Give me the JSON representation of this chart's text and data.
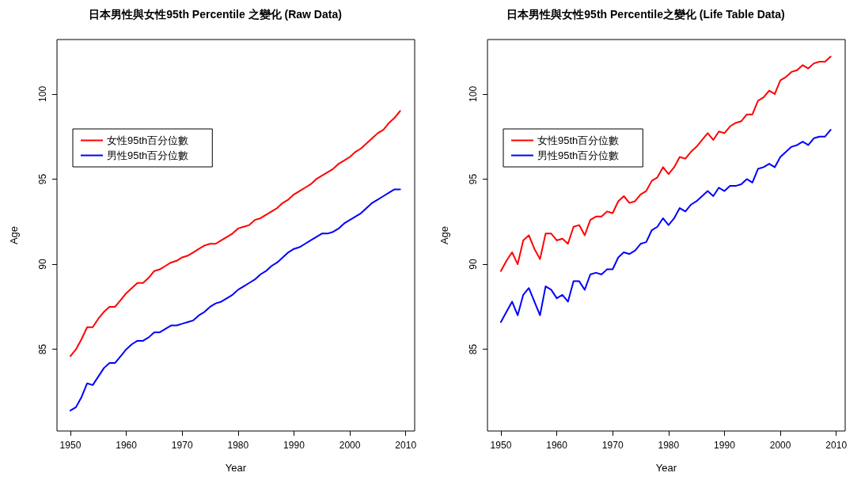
{
  "chart_data": [
    {
      "type": "line",
      "title": "日本男性與女性95th Percentile 之變化 (Raw Data)",
      "xlabel": "Year",
      "ylabel": "Age",
      "x": [
        1950,
        1951,
        1952,
        1953,
        1954,
        1955,
        1956,
        1957,
        1958,
        1959,
        1960,
        1961,
        1962,
        1963,
        1964,
        1965,
        1966,
        1967,
        1968,
        1969,
        1970,
        1971,
        1972,
        1973,
        1974,
        1975,
        1976,
        1977,
        1978,
        1979,
        1980,
        1981,
        1982,
        1983,
        1984,
        1985,
        1986,
        1987,
        1988,
        1989,
        1990,
        1991,
        1992,
        1993,
        1994,
        1995,
        1996,
        1997,
        1998,
        1999,
        2000,
        2001,
        2002,
        2003,
        2004,
        2005,
        2006,
        2007,
        2008,
        2009
      ],
      "series": [
        {
          "name": "女性95th百分位數",
          "color": "#ff0000",
          "values": [
            84.6,
            85.0,
            85.6,
            86.3,
            86.3,
            86.8,
            87.2,
            87.5,
            87.5,
            87.9,
            88.3,
            88.6,
            88.9,
            88.9,
            89.2,
            89.6,
            89.7,
            89.9,
            90.1,
            90.2,
            90.4,
            90.5,
            90.7,
            90.9,
            91.1,
            91.2,
            91.2,
            91.4,
            91.6,
            91.8,
            92.1,
            92.2,
            92.3,
            92.6,
            92.7,
            92.9,
            93.1,
            93.3,
            93.6,
            93.8,
            94.1,
            94.3,
            94.5,
            94.7,
            95.0,
            95.2,
            95.4,
            95.6,
            95.9,
            96.1,
            96.3,
            96.6,
            96.8,
            97.1,
            97.4,
            97.7,
            97.9,
            98.3,
            98.6,
            99.0
          ]
        },
        {
          "name": "男性95th百分位數",
          "color": "#0000ff",
          "values": [
            81.4,
            81.6,
            82.2,
            83.0,
            82.9,
            83.4,
            83.9,
            84.2,
            84.2,
            84.6,
            85.0,
            85.3,
            85.5,
            85.5,
            85.7,
            86.0,
            86.0,
            86.2,
            86.4,
            86.4,
            86.5,
            86.6,
            86.7,
            87.0,
            87.2,
            87.5,
            87.7,
            87.8,
            88.0,
            88.2,
            88.5,
            88.7,
            88.9,
            89.1,
            89.4,
            89.6,
            89.9,
            90.1,
            90.4,
            90.7,
            90.9,
            91.0,
            91.2,
            91.4,
            91.6,
            91.8,
            91.8,
            91.9,
            92.1,
            92.4,
            92.6,
            92.8,
            93.0,
            93.3,
            93.6,
            93.8,
            94.0,
            94.2,
            94.4,
            94.4
          ]
        }
      ],
      "xlim": [
        1947.6,
        2011.6
      ],
      "xticks": [
        1950,
        1960,
        1970,
        1980,
        1990,
        2000,
        2010
      ],
      "ylim": [
        80.2,
        103.2
      ],
      "yticks": [
        85,
        90,
        95,
        100
      ],
      "grid": false,
      "legend": "top left",
      "marker": "none",
      "line_style": "solid"
    },
    {
      "type": "line",
      "title": "日本男性與女性95th Percentile之變化 (Life Table Data)",
      "xlabel": "Year",
      "ylabel": "Age",
      "x": [
        1950,
        1951,
        1952,
        1953,
        1954,
        1955,
        1956,
        1957,
        1958,
        1959,
        1960,
        1961,
        1962,
        1963,
        1964,
        1965,
        1966,
        1967,
        1968,
        1969,
        1970,
        1971,
        1972,
        1973,
        1974,
        1975,
        1976,
        1977,
        1978,
        1979,
        1980,
        1981,
        1982,
        1983,
        1984,
        1985,
        1986,
        1987,
        1988,
        1989,
        1990,
        1991,
        1992,
        1993,
        1994,
        1995,
        1996,
        1997,
        1998,
        1999,
        2000,
        2001,
        2002,
        2003,
        2004,
        2005,
        2006,
        2007,
        2008,
        2009
      ],
      "series": [
        {
          "name": "女性95th百分位數",
          "color": "#ff0000",
          "values": [
            89.6,
            90.2,
            90.7,
            90.0,
            91.4,
            91.7,
            90.9,
            90.3,
            91.8,
            91.8,
            91.4,
            91.5,
            91.2,
            92.2,
            92.3,
            91.7,
            92.6,
            92.8,
            92.8,
            93.1,
            93.0,
            93.7,
            94.0,
            93.6,
            93.7,
            94.1,
            94.3,
            94.9,
            95.1,
            95.7,
            95.3,
            95.7,
            96.3,
            96.2,
            96.6,
            96.9,
            97.3,
            97.7,
            97.3,
            97.8,
            97.7,
            98.1,
            98.3,
            98.4,
            98.8,
            98.8,
            99.6,
            99.8,
            100.2,
            100.0,
            100.8,
            101.0,
            101.3,
            101.4,
            101.7,
            101.5,
            101.8,
            101.9,
            101.9,
            102.2
          ]
        },
        {
          "name": "男性95th百分位數",
          "color": "#0000ff",
          "values": [
            86.6,
            87.2,
            87.8,
            87.0,
            88.2,
            88.6,
            87.8,
            87.0,
            88.7,
            88.5,
            88.0,
            88.2,
            87.8,
            89.0,
            89.0,
            88.5,
            89.4,
            89.5,
            89.4,
            89.7,
            89.7,
            90.4,
            90.7,
            90.6,
            90.8,
            91.2,
            91.3,
            92.0,
            92.2,
            92.7,
            92.3,
            92.7,
            93.3,
            93.1,
            93.5,
            93.7,
            94.0,
            94.3,
            94.0,
            94.5,
            94.3,
            94.6,
            94.6,
            94.7,
            95.0,
            94.8,
            95.6,
            95.7,
            95.9,
            95.7,
            96.3,
            96.6,
            96.9,
            97.0,
            97.2,
            97.0,
            97.4,
            97.5,
            97.5,
            97.9
          ]
        }
      ],
      "xlim": [
        1947.6,
        2011.6
      ],
      "xticks": [
        1950,
        1960,
        1970,
        1980,
        1990,
        2000,
        2010
      ],
      "ylim": [
        80.2,
        103.2
      ],
      "yticks": [
        85,
        90,
        95,
        100
      ],
      "grid": false,
      "legend": "top left",
      "marker": "none",
      "line_style": "solid"
    }
  ]
}
